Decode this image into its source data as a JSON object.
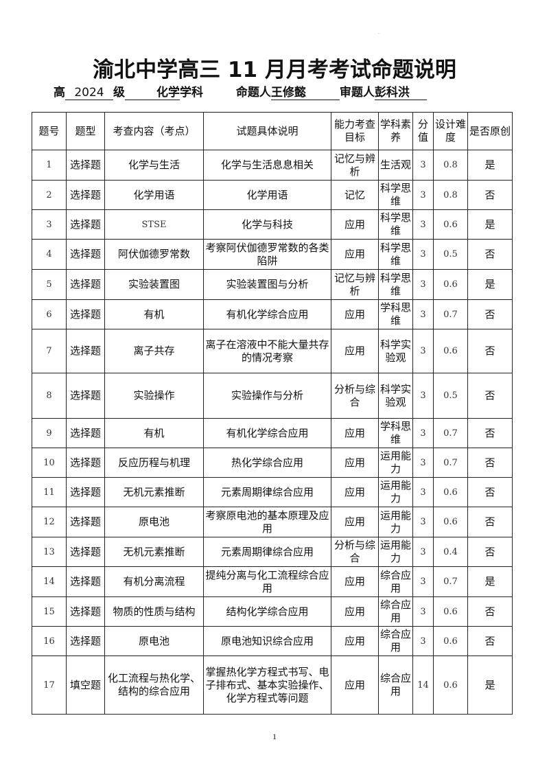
{
  "title": "渝北中学高三 11 月月考考试命题说明",
  "subtitle": {
    "grade_prefix": "高",
    "grade": "2024",
    "grade_suffix": "级",
    "subject": "化学",
    "subject_suffix": "学科",
    "author_label": "命题人",
    "author": "王修懿",
    "reviewer_label": "审题人",
    "reviewer": "彭科洪"
  },
  "table": {
    "headers": [
      "题号",
      "题型",
      "考查内容（考点）",
      "试题具体说明",
      "能力考查目标",
      "学科素养",
      "分值",
      "设计难度",
      "是否原创"
    ],
    "rows": [
      [
        "1",
        "选择题",
        "化学与生活",
        "化学与生活息息相关",
        "记忆与辨析",
        "生活观",
        "3",
        "0.8",
        "是"
      ],
      [
        "2",
        "选择题",
        "化学用语",
        "化学用语",
        "记忆",
        "科学思维",
        "3",
        "0.8",
        "否"
      ],
      [
        "3",
        "选择题",
        "STSE",
        "化学与科技",
        "应用",
        "科学思维",
        "3",
        "0.6",
        "是"
      ],
      [
        "4",
        "选择题",
        "阿伏伽德罗常数",
        "考察阿伏伽德罗常数的各类陷阱",
        "应用",
        "科学思维",
        "3",
        "0.5",
        "否"
      ],
      [
        "5",
        "选择题",
        "实验装置图",
        "实验装置图与分析",
        "记忆与辨析",
        "科学思维",
        "3",
        "0.6",
        "是"
      ],
      [
        "6",
        "选择题",
        "有机",
        "有机化学综合应用",
        "应用",
        "学科思维",
        "3",
        "0.7",
        "否"
      ],
      [
        "7",
        "选择题",
        "离子共存",
        "离子在溶液中不能大量共存的情况考察",
        "应用",
        "科学实验观",
        "3",
        "0.6",
        "否"
      ],
      [
        "8",
        "选择题",
        "实验操作",
        "实验操作与分析",
        "分析与综合",
        "科学实验观",
        "3",
        "0.5",
        "否"
      ],
      [
        "9",
        "选择题",
        "有机",
        "有机化学综合应用",
        "应用",
        "学科思维",
        "3",
        "0.7",
        "否"
      ],
      [
        "10",
        "选择题",
        "反应历程与机理",
        "热化学综合应用",
        "应用",
        "运用能力",
        "3",
        "0.7",
        "否"
      ],
      [
        "11",
        "选择题",
        "无机元素推断",
        "元素周期律综合应用",
        "应用",
        "运用能力",
        "3",
        "0.6",
        "否"
      ],
      [
        "12",
        "选择题",
        "原电池",
        "考察原电池的基本原理及应用",
        "应用",
        "运用能力",
        "3",
        "0.6",
        "否"
      ],
      [
        "13",
        "选择题",
        "无机元素推断",
        "元素周期律综合应用",
        "分析与综合",
        "运用能力",
        "3",
        "0.4",
        "否"
      ],
      [
        "14",
        "选择题",
        "有机分离流程",
        "提纯分离与化工流程综合应用",
        "应用",
        "综合应用",
        "3",
        "0.7",
        "是"
      ],
      [
        "15",
        "选择题",
        "物质的性质与结构",
        "结构化学综合应用",
        "应用",
        "综合应用",
        "3",
        "0.6",
        "否"
      ],
      [
        "16",
        "选择题",
        "原电池",
        "原电池知识综合应用",
        "应用",
        "综合应用",
        "3",
        "0.6",
        "否"
      ],
      [
        "17",
        "填空题",
        "化工流程与热化学、结构的综合应用",
        "掌握热化学方程式书写、电子排布式、基本实验操作、化学方程式等问题",
        "应用",
        "综合应用",
        "14",
        "0.6",
        "是"
      ]
    ]
  },
  "page_number": "1"
}
